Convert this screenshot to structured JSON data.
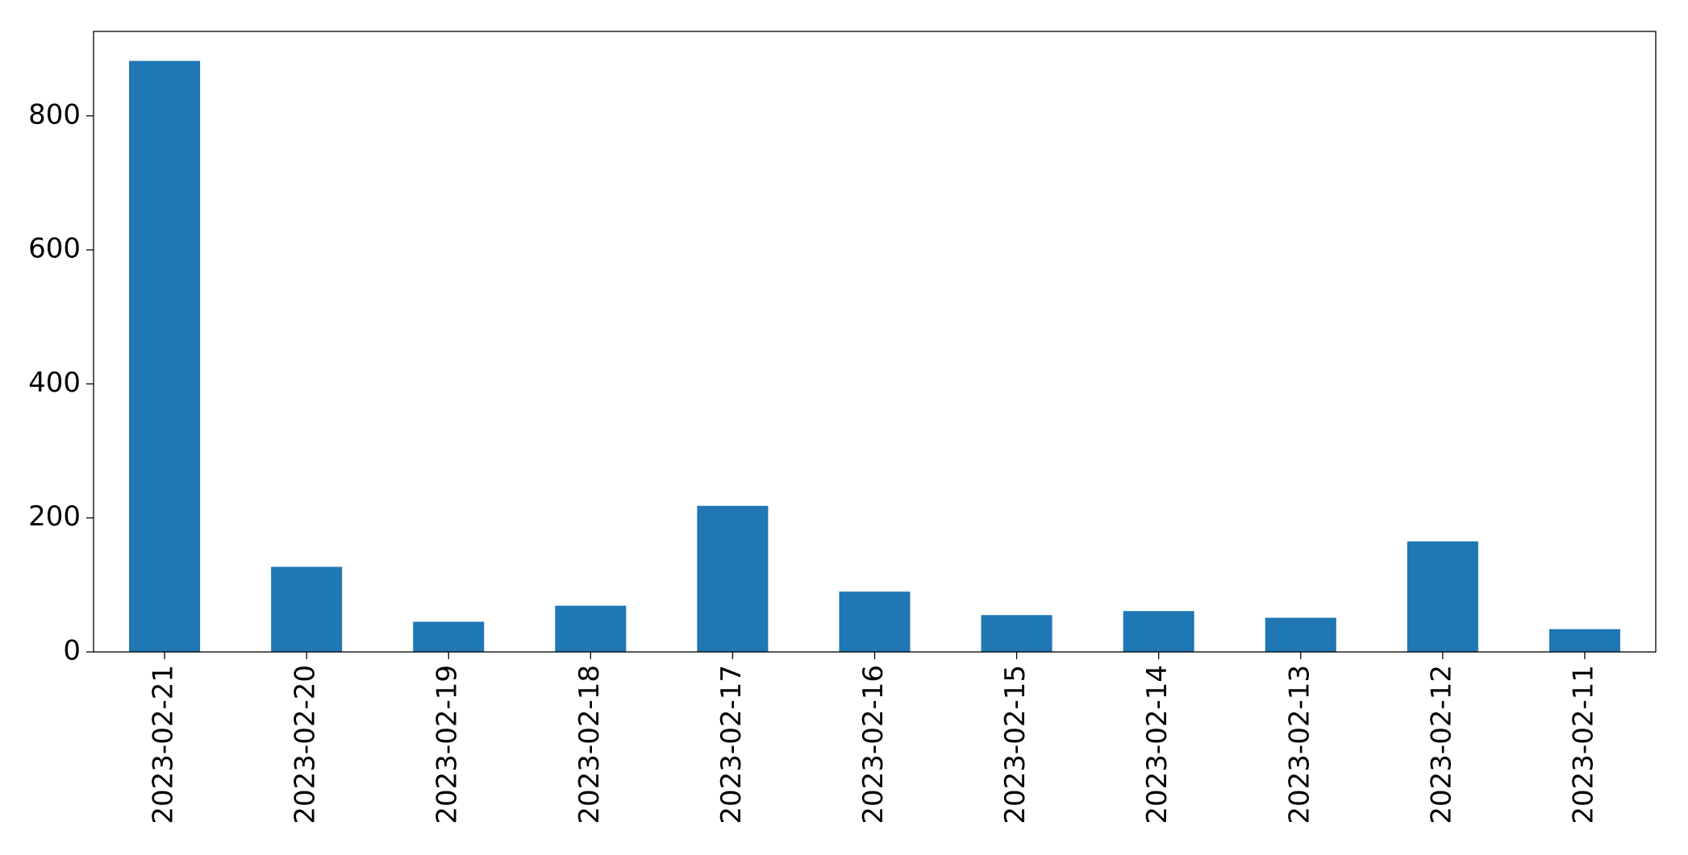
{
  "chart_data": {
    "type": "bar",
    "categories": [
      "2023-02-21",
      "2023-02-20",
      "2023-02-19",
      "2023-02-18",
      "2023-02-17",
      "2023-02-16",
      "2023-02-15",
      "2023-02-14",
      "2023-02-13",
      "2023-02-12",
      "2023-02-11"
    ],
    "values": [
      882,
      127,
      45,
      69,
      218,
      90,
      55,
      61,
      51,
      165,
      34
    ],
    "color": "#1f77b4",
    "ylim": [
      0,
      926
    ],
    "yticks": [
      0,
      200,
      400,
      600,
      800
    ],
    "grid": false
  }
}
